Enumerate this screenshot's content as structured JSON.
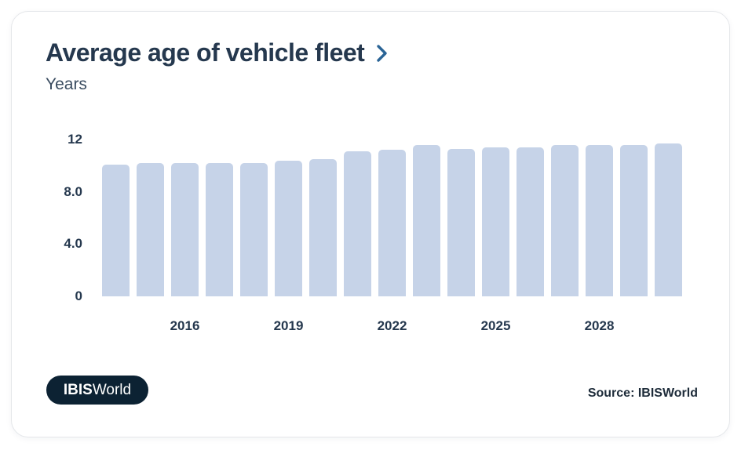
{
  "card": {
    "title": "Average age of vehicle fleet",
    "subtitle": "Years",
    "source": "Source: IBISWorld",
    "logo": {
      "bold": "IBIS",
      "regular": "World"
    }
  },
  "colors": {
    "title_navy": "#25384e",
    "bar_fill": "#c6d3e8",
    "chevron_blue": "#2a6496",
    "logo_background": "#0c2233",
    "card_border": "#e5e7ea"
  },
  "chart_data": {
    "type": "bar",
    "title": "Average age of vehicle fleet",
    "ylabel": "Years",
    "xlabel": "",
    "grid": false,
    "legend": "none",
    "ylim": [
      0,
      12
    ],
    "bar_color": "#c6d3e8",
    "categories": [
      2014,
      2015,
      2016,
      2017,
      2018,
      2019,
      2020,
      2021,
      2022,
      2023,
      2024,
      2025,
      2026,
      2027,
      2028,
      2029,
      2030
    ],
    "values": [
      10.1,
      10.2,
      10.2,
      10.2,
      10.2,
      10.4,
      10.5,
      11.1,
      11.2,
      11.6,
      11.3,
      11.4,
      11.4,
      11.6,
      11.6,
      11.6,
      11.7
    ],
    "y_ticks": [
      {
        "value": 0,
        "label": "0"
      },
      {
        "value": 4,
        "label": "4.0"
      },
      {
        "value": 8,
        "label": "8.0"
      },
      {
        "value": 12,
        "label": "12"
      }
    ],
    "x_ticks": [
      {
        "index": 2,
        "label": "2016"
      },
      {
        "index": 5,
        "label": "2019"
      },
      {
        "index": 8,
        "label": "2022"
      },
      {
        "index": 11,
        "label": "2025"
      },
      {
        "index": 14,
        "label": "2028"
      }
    ]
  }
}
